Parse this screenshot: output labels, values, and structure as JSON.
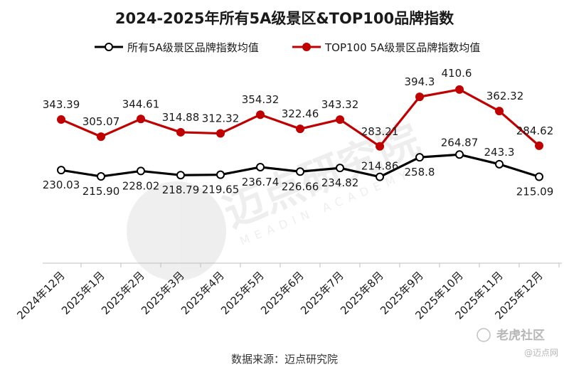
{
  "chart_data": {
    "type": "line",
    "title": "2024-2025年所有5A级景区&TOP100品牌指数",
    "categories": [
      "2024年12月",
      "2025年1月",
      "2025年2月",
      "2025年3月",
      "2025年4月",
      "2025年5月",
      "2025年6月",
      "2025年7月",
      "2025年8月",
      "2025年9月",
      "2025年10月",
      "2025年11月",
      "2025年12月"
    ],
    "series": [
      {
        "name": "所有5A级景区品牌指数均值",
        "color": "#000000",
        "marker_fill": "#ffffff",
        "values": [
          230.03,
          215.9,
          228.02,
          218.79,
          219.65,
          236.74,
          226.66,
          234.82,
          214.86,
          258.8,
          264.87,
          243.3,
          215.09
        ],
        "labels": [
          "230.03",
          "215.90",
          "228.02",
          "218.79",
          "219.65",
          "236.74",
          "226.66",
          "234.82",
          "214.86",
          "258.8",
          "264.87",
          "243.3",
          "215.09"
        ]
      },
      {
        "name": "TOP100 5A级景区品牌指数均值",
        "color": "#c00000",
        "marker_fill": "#c00000",
        "values": [
          343.39,
          305.07,
          344.61,
          314.88,
          312.32,
          354.32,
          322.46,
          343.32,
          283.21,
          394.3,
          410.6,
          362.32,
          284.62
        ],
        "labels": [
          "343.39",
          "305.07",
          "344.61",
          "314.88",
          "312.32",
          "354.32",
          "322.46",
          "343.32",
          "283.21",
          "394.3",
          "410.6",
          "362.32",
          "284.62"
        ]
      }
    ],
    "legend_position": "top",
    "grid": false,
    "source_note": "数据来源：迈点研究院"
  },
  "watermarks": {
    "center_cn": "迈点研究院",
    "center_en": "MEADIN ACADEMY",
    "corner_brand": "老虎社区",
    "corner_handle": "@迈点网"
  }
}
